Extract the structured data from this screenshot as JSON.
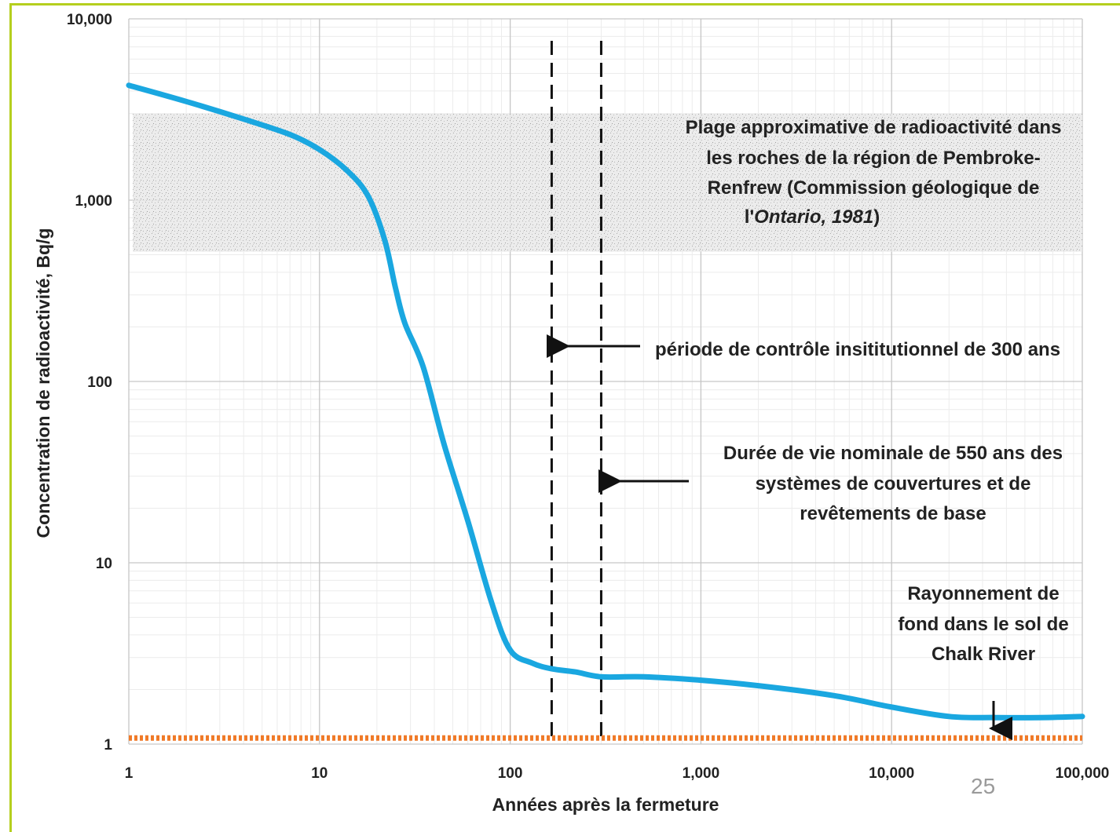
{
  "page_number": "25",
  "colors": {
    "frame": "#b5cf1e",
    "curve": "#1aa7e0",
    "background_line": "#f07a28",
    "band": "#c8c8c8"
  },
  "chart_data": {
    "type": "line",
    "xscale": "log",
    "yscale": "log",
    "xlim": [
      1,
      100000
    ],
    "ylim": [
      1,
      10000
    ],
    "xlabel": "Années après la fermeture",
    "ylabel": "Concentration de radioactivité, Bq/g",
    "x_ticks": [
      "1",
      "10",
      "100",
      "1,000",
      "10,000",
      "100,000"
    ],
    "y_ticks": [
      "1",
      "10",
      "100",
      "1,000",
      "10,000"
    ],
    "grid": true,
    "series": [
      {
        "x": [
          1,
          2,
          4,
          7,
          10,
          14,
          18,
          22,
          25,
          28,
          35,
          45,
          60,
          80,
          100,
          130,
          165,
          220,
          300,
          500,
          1000,
          2000,
          5000,
          10000,
          20000,
          35000,
          60000,
          100000
        ],
        "y": [
          4300,
          3500,
          2800,
          2300,
          1900,
          1450,
          1050,
          600,
          330,
          210,
          120,
          45,
          17,
          6,
          3.3,
          2.8,
          2.6,
          2.5,
          2.35,
          2.35,
          2.25,
          2.1,
          1.85,
          1.6,
          1.42,
          1.4,
          1.4,
          1.42
        ],
        "color": "#1aa7e0"
      },
      {
        "x": [
          1,
          100000
        ],
        "y": [
          1.08,
          1.08
        ],
        "color": "#f07a28",
        "style": "dotted"
      }
    ],
    "shaded_band": {
      "y_from": 520,
      "y_to": 3000,
      "x_from": 1.05,
      "x_to": 100000
    },
    "vertical_lines": [
      165,
      300
    ],
    "annotations": {
      "rock_range": [
        "Plage approximative de radioactivité dans",
        "les roches de la région de Pembroke-",
        "Renfrew  (Commission géologique de",
        "l'",
        "Ontario, 1981",
        ")"
      ],
      "control_period": "période de contrôle insititutionnel de 300 ans",
      "design_life": [
        "Durée de vie nominale de 550 ans des",
        "systèmes de couvertures et de",
        "revêtements de base"
      ],
      "background": [
        "Rayonnement de",
        "fond dans le sol de",
        "Chalk River"
      ]
    }
  }
}
